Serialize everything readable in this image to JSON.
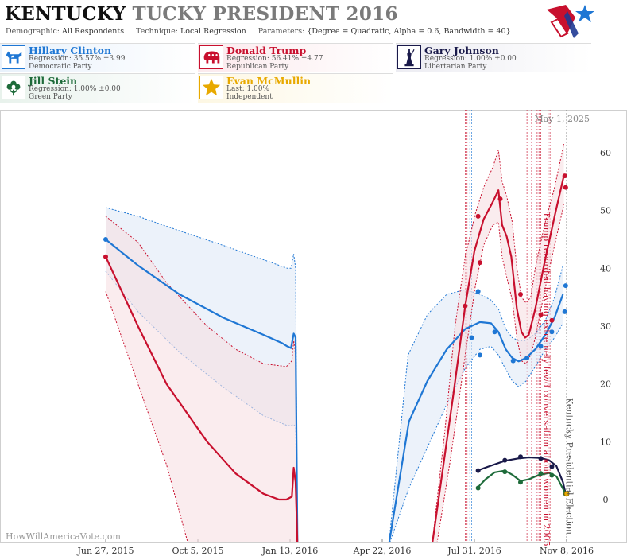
{
  "header": {
    "title_state": "KENTUCKY",
    "title_rest": "TUCKY PRESIDENT 2016",
    "demographic_label": "Demographic:",
    "demographic_value": "All Respondents",
    "technique_label": "Technique:",
    "technique_value": "Local Regression",
    "parameters_label": "Parameters:",
    "parameters_value": "{Degree = Quadratic, Alpha = 0.6, Bandwidth = 40}"
  },
  "candidates": [
    {
      "name": "Hillary Clinton",
      "line1": "Regression: 35.57% ±3.99",
      "line2": "Democratic Party",
      "color": "#1f77d4",
      "bg": "#e8f1fb",
      "icon": "donkey-icon"
    },
    {
      "name": "Donald Trump",
      "line1": "Regression: 56.41% ±4.77",
      "line2": "Republican Party",
      "color": "#c8102e",
      "bg": "#fbe9ec",
      "icon": "elephant-icon"
    },
    {
      "name": "Gary Johnson",
      "line1": "Regression: 1.00% ±0.00",
      "line2": "Libertarian Party",
      "color": "#1a1a4a",
      "bg": "#ececf2",
      "icon": "statue-of-liberty-icon"
    },
    {
      "name": "Jill Stein",
      "line1": "Regression: 1.00% ±0.00",
      "line2": "Green Party",
      "color": "#1e6b3a",
      "bg": "#e8f2ec",
      "icon": "flower-icon"
    },
    {
      "name": "Evan McMullin",
      "line1": "Last: 1.00%",
      "line2": "Independent",
      "color": "#e8a900",
      "bg": "#fdf7e3",
      "icon": "star-icon"
    }
  ],
  "chart_data": {
    "type": "line",
    "x_ticks": [
      "Jun 27, 2015",
      "Oct 5, 2015",
      "Jan 13, 2016",
      "Apr 22, 2016",
      "Jul 31, 2016",
      "Nov 8, 2016"
    ],
    "y_ticks": [
      0,
      10,
      20,
      30,
      40,
      50,
      60
    ],
    "ylim": [
      -7,
      67
    ],
    "grid": false,
    "date_label": "May 1, 2025",
    "watermark": "HowWillAmericaVote.com",
    "annotations": [
      {
        "date": "Oct 7, 2016",
        "text": "Trump recorded having extremely lewd conversation about women in 2005",
        "color": "#c8102e"
      },
      {
        "date": "Nov 8, 2016",
        "text": "Kentucky Presidential Election",
        "color": "#555555"
      }
    ],
    "event_lines": [
      {
        "date": "Jul 26, 2016",
        "color": "#1f77d4"
      },
      {
        "date": "Jul 28, 2016",
        "color": "#1f77d4"
      },
      {
        "date": "Jul 21, 2016",
        "color": "#c8102e"
      },
      {
        "date": "Jul 23, 2016",
        "color": "#c8102e"
      },
      {
        "date": "Sep 26, 2016",
        "color": "#c8102e"
      },
      {
        "date": "Oct 1, 2016",
        "color": "#c8102e"
      },
      {
        "date": "Oct 7, 2016",
        "color": "#c8102e"
      },
      {
        "date": "Oct 9, 2016",
        "color": "#c8102e"
      },
      {
        "date": "Oct 11, 2016",
        "color": "#c8102e"
      },
      {
        "date": "Oct 19, 2016",
        "color": "#c8102e"
      },
      {
        "date": "Oct 21, 2016",
        "color": "#c8102e"
      },
      {
        "date": "Nov 8, 2016",
        "color": "#555555"
      }
    ],
    "series": [
      {
        "name": "Hillary Clinton",
        "color": "#1f77d4",
        "band": "#dfe9f7",
        "line": [
          [
            "2015-06-27",
            45
          ],
          [
            "2015-08-01",
            40.5
          ],
          [
            "2015-09-15",
            35.5
          ],
          [
            "2015-11-01",
            31.5
          ],
          [
            "2015-12-15",
            28.5
          ],
          [
            "2016-01-05",
            27
          ],
          [
            "2016-01-10",
            26.5
          ],
          [
            "2016-01-14",
            26.2
          ],
          [
            "2016-01-17",
            28.7
          ],
          [
            "2016-01-19",
            28
          ],
          [
            "2016-01-21",
            -8
          ],
          [
            "2016-04-29",
            -8
          ],
          [
            "2016-05-21",
            13.5
          ],
          [
            "2016-06-10",
            20.5
          ],
          [
            "2016-07-01",
            26
          ],
          [
            "2016-07-21",
            29.5
          ],
          [
            "2016-08-06",
            30.7
          ],
          [
            "2016-08-18",
            30.5
          ],
          [
            "2016-08-26",
            29
          ],
          [
            "2016-09-03",
            26
          ],
          [
            "2016-09-10",
            24.5
          ],
          [
            "2016-09-17",
            23.9
          ],
          [
            "2016-09-25",
            24.5
          ],
          [
            "2016-10-05",
            26
          ],
          [
            "2016-10-16",
            28.5
          ],
          [
            "2016-10-26",
            31.5
          ],
          [
            "2016-11-04",
            35.5
          ]
        ],
        "upper": [
          [
            "2015-06-27",
            50.5
          ],
          [
            "2015-08-01",
            49
          ],
          [
            "2015-09-15",
            46.5
          ],
          [
            "2015-11-01",
            44
          ],
          [
            "2015-12-15",
            41.5
          ],
          [
            "2016-01-10",
            40
          ],
          [
            "2016-01-14",
            40
          ],
          [
            "2016-01-17",
            42.5
          ],
          [
            "2016-01-19",
            40
          ],
          [
            "2016-01-21",
            -8
          ],
          [
            "2016-04-29",
            -8
          ],
          [
            "2016-05-20",
            25
          ],
          [
            "2016-06-10",
            32
          ],
          [
            "2016-07-01",
            35.5
          ],
          [
            "2016-07-21",
            36.3
          ],
          [
            "2016-08-06",
            35.5
          ],
          [
            "2016-08-18",
            34.5
          ],
          [
            "2016-08-26",
            33
          ],
          [
            "2016-09-03",
            29.5
          ],
          [
            "2016-09-10",
            28
          ],
          [
            "2016-09-17",
            27.5
          ],
          [
            "2016-09-25",
            27.5
          ],
          [
            "2016-10-05",
            28.7
          ],
          [
            "2016-10-16",
            31
          ],
          [
            "2016-10-26",
            35
          ],
          [
            "2016-11-04",
            40.5
          ]
        ],
        "lower": [
          [
            "2015-06-27",
            39.5
          ],
          [
            "2015-08-01",
            32.5
          ],
          [
            "2015-09-15",
            25.5
          ],
          [
            "2015-11-01",
            19.5
          ],
          [
            "2015-12-15",
            14.5
          ],
          [
            "2016-01-10",
            12.8
          ],
          [
            "2016-01-14",
            12.8
          ],
          [
            "2016-01-17",
            13
          ],
          [
            "2016-01-19",
            12.5
          ],
          [
            "2016-01-21",
            -8
          ],
          [
            "2016-04-29",
            -8
          ],
          [
            "2016-05-21",
            2
          ],
          [
            "2016-06-10",
            9
          ],
          [
            "2016-07-01",
            16.5
          ],
          [
            "2016-07-21",
            22.7
          ],
          [
            "2016-08-06",
            26
          ],
          [
            "2016-08-18",
            26.5
          ],
          [
            "2016-08-26",
            25
          ],
          [
            "2016-09-03",
            22.5
          ],
          [
            "2016-09-10",
            20.5
          ],
          [
            "2016-09-17",
            19.5
          ],
          [
            "2016-09-25",
            20.5
          ],
          [
            "2016-10-05",
            23
          ],
          [
            "2016-10-16",
            26
          ],
          [
            "2016-10-26",
            28
          ],
          [
            "2016-11-04",
            30.5
          ]
        ],
        "points": [
          [
            "2015-06-27",
            45
          ],
          [
            "2016-07-28",
            28
          ],
          [
            "2016-08-04",
            36
          ],
          [
            "2016-08-06",
            25
          ],
          [
            "2016-08-22",
            29
          ],
          [
            "2016-09-11",
            24
          ],
          [
            "2016-09-26",
            24.5
          ],
          [
            "2016-10-11",
            26.5
          ],
          [
            "2016-10-23",
            29
          ],
          [
            "2016-11-06",
            32.5
          ],
          [
            "2016-11-07",
            37
          ]
        ]
      },
      {
        "name": "Donald Trump",
        "color": "#c8102e",
        "band": "#f7dfe3",
        "line": [
          [
            "2015-06-27",
            42
          ],
          [
            "2015-08-01",
            30
          ],
          [
            "2015-09-01",
            20
          ],
          [
            "2015-10-15",
            10
          ],
          [
            "2015-11-15",
            4.5
          ],
          [
            "2015-12-15",
            1
          ],
          [
            "2016-01-01",
            0
          ],
          [
            "2016-01-09",
            0
          ],
          [
            "2016-01-15",
            0.5
          ],
          [
            "2016-01-17",
            5.5
          ],
          [
            "2016-01-19",
            3
          ],
          [
            "2016-01-21",
            -8
          ],
          [
            "2016-06-15",
            -8
          ],
          [
            "2016-07-08",
            18
          ],
          [
            "2016-07-21",
            33.5
          ],
          [
            "2016-07-31",
            43
          ],
          [
            "2016-08-10",
            48.5
          ],
          [
            "2016-08-20",
            51.5
          ],
          [
            "2016-08-26",
            53.5
          ],
          [
            "2016-08-30",
            47.5
          ],
          [
            "2016-09-04",
            45.5
          ],
          [
            "2016-09-09",
            42
          ],
          [
            "2016-09-15",
            33
          ],
          [
            "2016-09-20",
            29
          ],
          [
            "2016-09-24",
            28
          ],
          [
            "2016-09-28",
            28.5
          ],
          [
            "2016-10-05",
            33
          ],
          [
            "2016-10-15",
            41
          ],
          [
            "2016-10-26",
            49
          ],
          [
            "2016-11-05",
            56
          ]
        ],
        "upper": [
          [
            "2015-06-27",
            49
          ],
          [
            "2015-08-01",
            44.5
          ],
          [
            "2015-09-01",
            37.5
          ],
          [
            "2015-10-15",
            30
          ],
          [
            "2015-11-15",
            26
          ],
          [
            "2015-12-15",
            23.5
          ],
          [
            "2016-01-09",
            23
          ],
          [
            "2016-01-15",
            24
          ],
          [
            "2016-01-17",
            27.5
          ],
          [
            "2016-01-19",
            25
          ],
          [
            "2016-01-21",
            -8
          ],
          [
            "2016-06-15",
            -8
          ],
          [
            "2016-06-29",
            12
          ],
          [
            "2016-07-10",
            30
          ],
          [
            "2016-07-21",
            42
          ],
          [
            "2016-08-01",
            49.5
          ],
          [
            "2016-08-10",
            54
          ],
          [
            "2016-08-20",
            57.5
          ],
          [
            "2016-08-26",
            60.5
          ],
          [
            "2016-08-30",
            55
          ],
          [
            "2016-09-04",
            52.5
          ],
          [
            "2016-09-10",
            48
          ],
          [
            "2016-09-15",
            40
          ],
          [
            "2016-09-20",
            35
          ],
          [
            "2016-09-25",
            34
          ],
          [
            "2016-09-30",
            35
          ],
          [
            "2016-10-05",
            40
          ],
          [
            "2016-10-15",
            47.5
          ],
          [
            "2016-10-26",
            54
          ],
          [
            "2016-11-05",
            61.5
          ]
        ],
        "lower": [
          [
            "2015-06-27",
            36
          ],
          [
            "2015-08-01",
            20
          ],
          [
            "2015-09-01",
            6
          ],
          [
            "2015-09-25",
            -8
          ],
          [
            "2016-06-20",
            -8
          ],
          [
            "2016-07-04",
            6
          ],
          [
            "2016-07-14",
            17
          ],
          [
            "2016-07-21",
            25
          ],
          [
            "2016-08-01",
            37
          ],
          [
            "2016-08-10",
            44
          ],
          [
            "2016-08-20",
            47.5
          ],
          [
            "2016-08-26",
            48
          ],
          [
            "2016-08-30",
            42
          ],
          [
            "2016-09-04",
            38.5
          ],
          [
            "2016-09-10",
            34.5
          ],
          [
            "2016-09-15",
            28
          ],
          [
            "2016-09-20",
            24
          ],
          [
            "2016-09-25",
            23.5
          ],
          [
            "2016-09-30",
            25
          ],
          [
            "2016-10-05",
            28
          ],
          [
            "2016-10-15",
            36
          ],
          [
            "2016-10-26",
            44
          ],
          [
            "2016-11-05",
            51
          ]
        ],
        "points": [
          [
            "2015-06-27",
            42
          ],
          [
            "2016-07-21",
            33.5
          ],
          [
            "2016-08-04",
            49
          ],
          [
            "2016-08-06",
            41
          ],
          [
            "2016-08-28",
            52
          ],
          [
            "2016-09-19",
            35.5
          ],
          [
            "2016-10-11",
            32
          ],
          [
            "2016-10-23",
            31
          ],
          [
            "2016-11-06",
            56
          ],
          [
            "2016-11-07",
            54
          ]
        ]
      },
      {
        "name": "Gary Johnson",
        "color": "#1a1a4a",
        "line": [
          [
            "2016-08-03",
            5
          ],
          [
            "2016-08-15",
            5.7
          ],
          [
            "2016-09-02",
            6.7
          ],
          [
            "2016-09-16",
            7.1
          ],
          [
            "2016-09-28",
            7.3
          ],
          [
            "2016-10-10",
            7.2
          ],
          [
            "2016-10-20",
            6.8
          ],
          [
            "2016-10-28",
            5.8
          ],
          [
            "2016-11-04",
            3
          ],
          [
            "2016-11-07",
            1
          ]
        ],
        "points": [
          [
            "2016-08-04",
            5
          ],
          [
            "2016-09-02",
            6.8
          ],
          [
            "2016-09-19",
            7.4
          ],
          [
            "2016-10-11",
            7.1
          ],
          [
            "2016-10-23",
            5.7
          ],
          [
            "2016-11-07",
            1
          ]
        ]
      },
      {
        "name": "Jill Stein",
        "color": "#1e6b3a",
        "line": [
          [
            "2016-08-03",
            2
          ],
          [
            "2016-08-12",
            3.5
          ],
          [
            "2016-08-22",
            4.7
          ],
          [
            "2016-09-02",
            5
          ],
          [
            "2016-09-10",
            4.3
          ],
          [
            "2016-09-19",
            3.2
          ],
          [
            "2016-09-28",
            3.5
          ],
          [
            "2016-10-08",
            4.2
          ],
          [
            "2016-10-20",
            4.6
          ],
          [
            "2016-10-28",
            4
          ],
          [
            "2016-11-07",
            1
          ]
        ],
        "points": [
          [
            "2016-08-04",
            2
          ],
          [
            "2016-09-02",
            4.8
          ],
          [
            "2016-09-19",
            3
          ],
          [
            "2016-10-11",
            4.5
          ],
          [
            "2016-10-23",
            4.2
          ],
          [
            "2016-11-07",
            1
          ]
        ]
      },
      {
        "name": "Evan McMullin",
        "color": "#e8a900",
        "line": [],
        "points": [
          [
            "2016-11-08",
            1
          ]
        ]
      }
    ]
  }
}
